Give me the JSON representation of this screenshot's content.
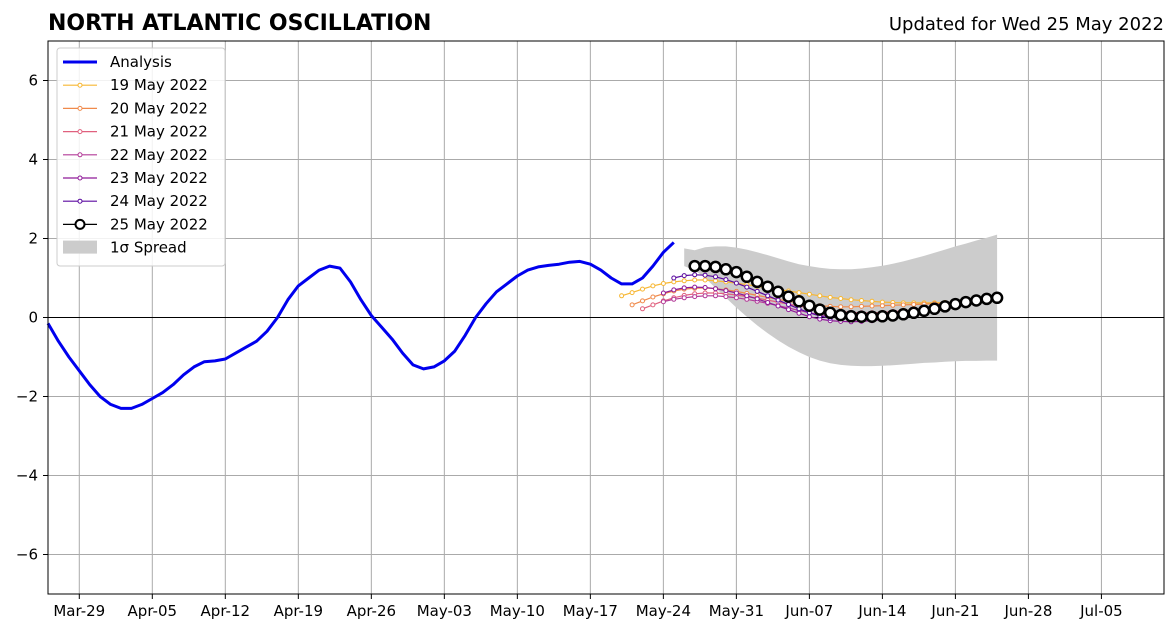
{
  "chart_data": {
    "type": "line",
    "title": "NORTH ATLANTIC OSCILLATION",
    "subtitle": "Updated for Wed 25 May 2022",
    "xlabel": "",
    "ylabel": "",
    "xlim": [
      "2022-03-26",
      "2022-07-11"
    ],
    "ylim": [
      -7,
      7
    ],
    "grid": true,
    "legend_position": "top-left",
    "x_ticks": [
      {
        "date": "2022-03-29",
        "label": "Mar-29"
      },
      {
        "date": "2022-04-05",
        "label": "Apr-05"
      },
      {
        "date": "2022-04-12",
        "label": "Apr-12"
      },
      {
        "date": "2022-04-19",
        "label": "Apr-19"
      },
      {
        "date": "2022-04-26",
        "label": "Apr-26"
      },
      {
        "date": "2022-05-03",
        "label": "May-03"
      },
      {
        "date": "2022-05-10",
        "label": "May-10"
      },
      {
        "date": "2022-05-17",
        "label": "May-17"
      },
      {
        "date": "2022-05-24",
        "label": "May-24"
      },
      {
        "date": "2022-05-31",
        "label": "May-31"
      },
      {
        "date": "2022-06-07",
        "label": "Jun-07"
      },
      {
        "date": "2022-06-14",
        "label": "Jun-14"
      },
      {
        "date": "2022-06-21",
        "label": "Jun-21"
      },
      {
        "date": "2022-06-28",
        "label": "Jun-28"
      },
      {
        "date": "2022-07-05",
        "label": "Jul-05"
      }
    ],
    "y_ticks": [
      {
        "value": 6,
        "label": "6"
      },
      {
        "value": 4,
        "label": "4"
      },
      {
        "value": 2,
        "label": "2"
      },
      {
        "value": 0,
        "label": "0"
      },
      {
        "value": -2,
        "label": "−2"
      },
      {
        "value": -4,
        "label": "−4"
      },
      {
        "value": -6,
        "label": "−6"
      }
    ],
    "series": [
      {
        "name": "Analysis",
        "color": "#0000ee",
        "style": "thick-line",
        "x_start": "2022-03-26",
        "values": [
          -0.15,
          -0.6,
          -1.0,
          -1.35,
          -1.7,
          -2.0,
          -2.2,
          -2.3,
          -2.3,
          -2.2,
          -2.05,
          -1.9,
          -1.7,
          -1.45,
          -1.25,
          -1.12,
          -1.1,
          -1.05,
          -0.9,
          -0.75,
          -0.6,
          -0.35,
          0.0,
          0.45,
          0.8,
          1.0,
          1.2,
          1.3,
          1.25,
          0.9,
          0.45,
          0.05,
          -0.25,
          -0.55,
          -0.9,
          -1.2,
          -1.3,
          -1.25,
          -1.1,
          -0.85,
          -0.45,
          0.0,
          0.35,
          0.65,
          0.85,
          1.05,
          1.2,
          1.28,
          1.32,
          1.35,
          1.4,
          1.42,
          1.35,
          1.2,
          1.0,
          0.85,
          0.85,
          1.0,
          1.3,
          1.65,
          1.9
        ]
      },
      {
        "name": "19 May 2022",
        "color": "#f7b733",
        "style": "small-markers",
        "x_start": "2022-05-20",
        "values": [
          0.55,
          0.63,
          0.72,
          0.8,
          0.86,
          0.9,
          0.93,
          0.95,
          0.95,
          0.93,
          0.9,
          0.87,
          0.83,
          0.79,
          0.75,
          0.71,
          0.67,
          0.63,
          0.59,
          0.55,
          0.51,
          0.48,
          0.45,
          0.43,
          0.41,
          0.39,
          0.38,
          0.37,
          0.37,
          0.37,
          0.37,
          0.38,
          0.38,
          0.39,
          0.4
        ]
      },
      {
        "name": "20 May 2022",
        "color": "#f08a4b",
        "style": "small-markers",
        "x_start": "2022-05-21",
        "values": [
          0.32,
          0.42,
          0.52,
          0.6,
          0.67,
          0.72,
          0.74,
          0.75,
          0.73,
          0.7,
          0.66,
          0.61,
          0.56,
          0.51,
          0.46,
          0.41,
          0.37,
          0.33,
          0.3,
          0.28,
          0.27,
          0.27,
          0.28,
          0.29,
          0.3,
          0.31,
          0.32,
          0.33,
          0.34,
          0.35,
          0.36,
          0.38,
          0.4,
          0.42
        ]
      },
      {
        "name": "21 May 2022",
        "color": "#e0607e",
        "style": "small-markers",
        "x_start": "2022-05-22",
        "values": [
          0.22,
          0.32,
          0.42,
          0.5,
          0.56,
          0.6,
          0.62,
          0.62,
          0.6,
          0.57,
          0.53,
          0.49,
          0.44,
          0.39,
          0.34,
          0.29,
          0.25,
          0.21,
          0.18,
          0.15,
          0.13,
          0.12,
          0.12,
          0.13,
          0.15,
          0.17,
          0.19,
          0.22,
          0.25,
          0.28,
          0.32,
          0.35,
          0.38
        ]
      },
      {
        "name": "22 May 2022",
        "color": "#b33b98",
        "style": "small-markers",
        "x_start": "2022-05-24",
        "values": [
          0.4,
          0.46,
          0.5,
          0.53,
          0.55,
          0.55,
          0.53,
          0.5,
          0.46,
          0.41,
          0.36,
          0.3,
          0.24,
          0.18,
          0.12,
          0.07,
          0.03,
          0.0,
          -0.02,
          -0.03,
          -0.02,
          0.0
        ]
      },
      {
        "name": "23 May 2022",
        "color": "#8f1a99",
        "style": "small-markers",
        "x_start": "2022-05-24",
        "values": [
          0.62,
          0.7,
          0.75,
          0.77,
          0.76,
          0.73,
          0.68,
          0.62,
          0.55,
          0.47,
          0.38,
          0.29,
          0.2,
          0.11,
          0.02,
          -0.04,
          -0.08,
          -0.1,
          -0.11,
          -0.1,
          -0.08,
          -0.05
        ]
      },
      {
        "name": "24 May 2022",
        "color": "#5b0aa0",
        "style": "small-markers",
        "x_start": "2022-05-25",
        "values": [
          1.0,
          1.06,
          1.08,
          1.07,
          1.03,
          0.96,
          0.87,
          0.77,
          0.66,
          0.55,
          0.44,
          0.33,
          0.22,
          0.12,
          0.04,
          -0.02
        ]
      },
      {
        "name": "25 May 2022",
        "color": "#000000",
        "style": "big-markers",
        "x_start": "2022-05-27",
        "values": [
          1.3,
          1.3,
          1.28,
          1.22,
          1.15,
          1.03,
          0.9,
          0.78,
          0.65,
          0.53,
          0.41,
          0.3,
          0.2,
          0.12,
          0.06,
          0.03,
          0.02,
          0.02,
          0.03,
          0.05,
          0.08,
          0.12,
          0.17,
          0.22,
          0.28,
          0.34,
          0.39,
          0.43,
          0.47,
          0.5
        ]
      }
    ],
    "spread": {
      "name": "1σ Spread",
      "color": "#cccccc",
      "x_start": "2022-05-26",
      "upper": [
        1.9,
        1.3,
        1.2,
        1.15,
        1.1,
        1.03,
        0.95,
        0.85,
        0.75,
        0.65,
        0.55,
        0.45,
        0.38,
        0.32,
        0.26,
        0.22,
        0.2,
        0.2,
        0.22,
        0.25,
        0.28,
        0.32,
        0.37,
        0.42,
        0.48,
        0.55,
        0.62,
        0.7,
        0.78,
        0.86,
        0.94,
        1.0
      ],
      "lower": [
        1.9,
        1.3,
        1.2,
        1.15,
        1.1,
        1.03,
        0.95,
        0.85,
        0.75,
        0.65,
        0.55,
        0.45,
        0.38,
        0.32,
        0.26,
        0.22,
        0.2,
        0.2,
        0.22,
        0.25,
        0.28,
        0.32,
        0.37,
        0.42,
        0.48,
        0.55,
        0.62,
        0.7,
        0.78,
        0.86,
        0.94,
        1.0
      ],
      "band_upper": [
        1.75,
        1.7,
        1.78,
        1.8,
        1.8,
        1.77,
        1.72,
        1.65,
        1.58,
        1.5,
        1.42,
        1.35,
        1.3,
        1.26,
        1.23,
        1.22,
        1.22,
        1.24,
        1.27,
        1.31,
        1.36,
        1.42,
        1.49,
        1.56,
        1.64,
        1.72,
        1.8,
        1.87,
        1.95,
        2.02,
        2.1
      ],
      "band_lower": [
        1.3,
        1.2,
        1.0,
        0.75,
        0.5,
        0.25,
        0.02,
        -0.2,
        -0.4,
        -0.58,
        -0.74,
        -0.88,
        -1.0,
        -1.09,
        -1.16,
        -1.2,
        -1.22,
        -1.23,
        -1.23,
        -1.22,
        -1.21,
        -1.19,
        -1.17,
        -1.15,
        -1.14,
        -1.12,
        -1.11,
        -1.1,
        -1.1,
        -1.09,
        -1.09
      ]
    }
  }
}
